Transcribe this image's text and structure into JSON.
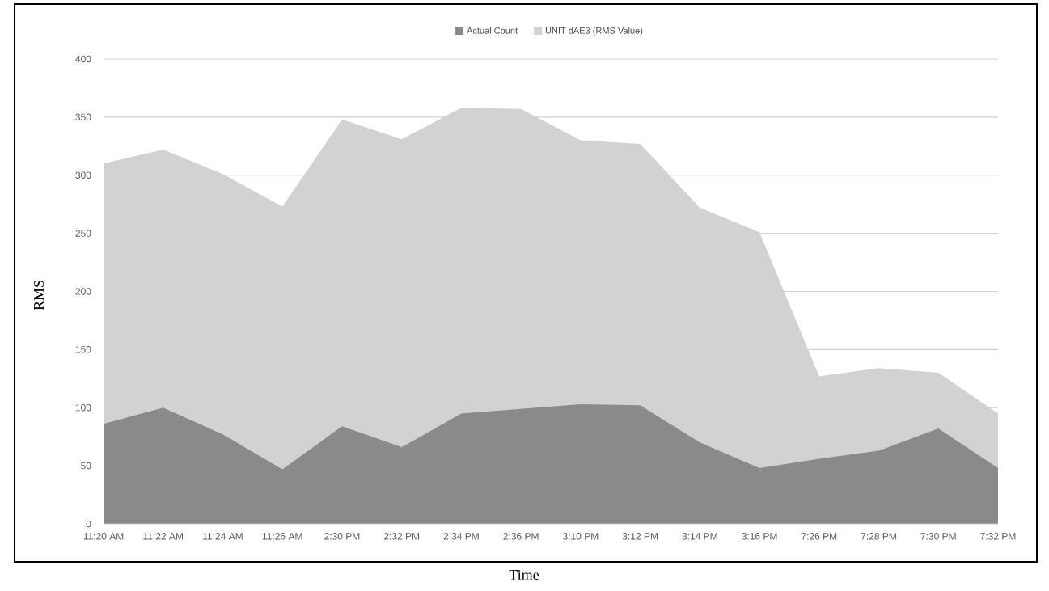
{
  "chart_data": {
    "type": "area",
    "xlabel": "Time",
    "ylabel": "RMS",
    "categories": [
      "11:20 AM",
      "11:22 AM",
      "11:24 AM",
      "11:26 AM",
      "2:30 PM",
      "2:32 PM",
      "2:34 PM",
      "2:36 PM",
      "3:10 PM",
      "3:12 PM",
      "3:14 PM",
      "3:16 PM",
      "7:26 PM",
      "7:28 PM",
      "7:30 PM",
      "7:32 PM"
    ],
    "series": [
      {
        "name": "Actual Count",
        "color": "#8a8a8a",
        "values": [
          86,
          100,
          77,
          47,
          84,
          66,
          95,
          99,
          103,
          102,
          70,
          48,
          56,
          63,
          82,
          48
        ]
      },
      {
        "name": "UNIT dAE3 (RMS Value)",
        "color": "#d2d2d2",
        "values": [
          310,
          322,
          301,
          273,
          348,
          331,
          358,
          357,
          330,
          327,
          272,
          251,
          127,
          134,
          130,
          95
        ]
      }
    ],
    "ylim": [
      0,
      400
    ],
    "yticks": [
      0,
      50,
      100,
      150,
      200,
      250,
      300,
      350,
      400
    ],
    "grid": "y",
    "legend": "top"
  }
}
